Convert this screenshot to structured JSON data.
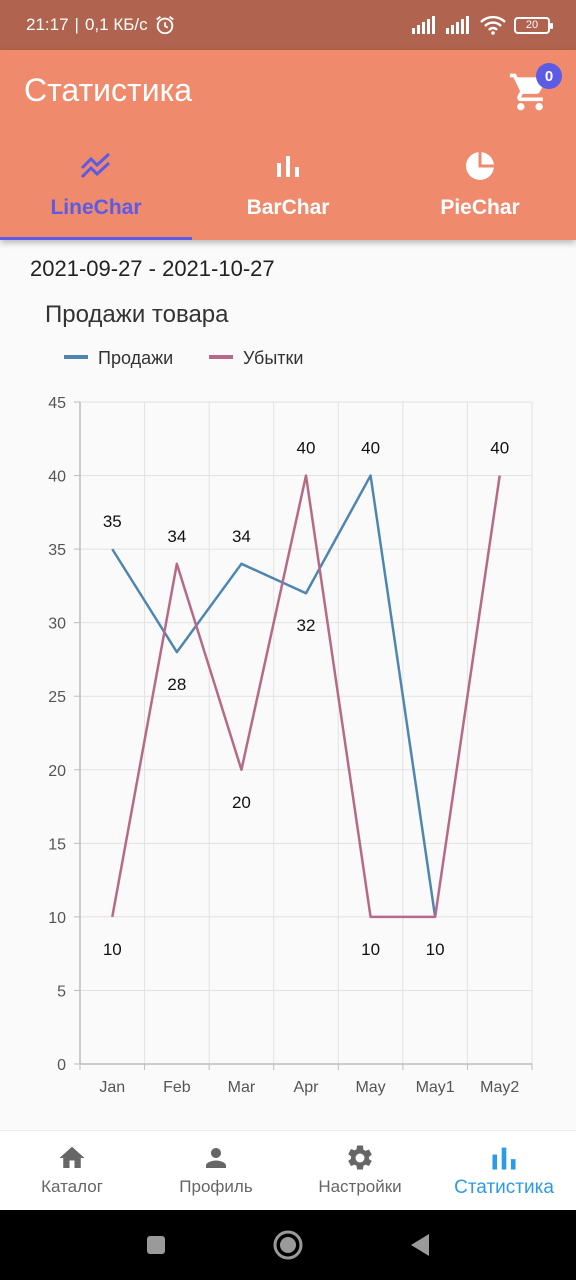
{
  "status_bar": {
    "time": "21:17",
    "speed": "0,1 КБ/с",
    "battery": "20",
    "icons": [
      "alarm-icon",
      "signal-icon",
      "signal-icon",
      "wifi-icon",
      "battery-icon"
    ]
  },
  "app_bar": {
    "title": "Статистика",
    "cart_count": "0"
  },
  "tabs": [
    {
      "label": "LineChar",
      "icon": "line-chart-icon",
      "active": true
    },
    {
      "label": "BarChar",
      "icon": "bar-chart-icon",
      "active": false
    },
    {
      "label": "PieChar",
      "icon": "pie-chart-icon",
      "active": false
    }
  ],
  "date_range": "2021-09-27 - 2021-10-27",
  "chart_data": {
    "type": "line",
    "title": "Продажи товара",
    "categories": [
      "Jan",
      "Feb",
      "Mar",
      "Apr",
      "May",
      "May1",
      "May2"
    ],
    "ylim": [
      0,
      45
    ],
    "yticks": [
      0,
      5,
      10,
      15,
      20,
      25,
      30,
      35,
      40,
      45
    ],
    "grid": true,
    "legend_position": "top-left",
    "series": [
      {
        "name": "Продажи",
        "color": "#4f86b0",
        "values": [
          35,
          28,
          34,
          32,
          40,
          10,
          null
        ]
      },
      {
        "name": "Убытки",
        "color": "#b66a87",
        "values": [
          10,
          34,
          20,
          40,
          10,
          10,
          40
        ]
      }
    ],
    "data_labels": [
      {
        "cat": 0,
        "value": 35,
        "text": "35",
        "pos": "above"
      },
      {
        "cat": 0,
        "value": 10,
        "text": "10",
        "pos": "below"
      },
      {
        "cat": 1,
        "value": 34,
        "text": "34",
        "pos": "above"
      },
      {
        "cat": 1,
        "value": 28,
        "text": "28",
        "pos": "below"
      },
      {
        "cat": 2,
        "value": 34,
        "text": "34",
        "pos": "above"
      },
      {
        "cat": 2,
        "value": 20,
        "text": "20",
        "pos": "below"
      },
      {
        "cat": 3,
        "value": 40,
        "text": "40",
        "pos": "above"
      },
      {
        "cat": 3,
        "value": 32,
        "text": "32",
        "pos": "below"
      },
      {
        "cat": 4,
        "value": 40,
        "text": "40",
        "pos": "above"
      },
      {
        "cat": 4,
        "value": 10,
        "text": "10",
        "pos": "below"
      },
      {
        "cat": 5,
        "value": 10,
        "text": "10",
        "pos": "below"
      },
      {
        "cat": 6,
        "value": 40,
        "text": "40",
        "pos": "above"
      }
    ]
  },
  "bottom_nav": [
    {
      "label": "Каталог",
      "icon": "home-icon",
      "active": false
    },
    {
      "label": "Профиль",
      "icon": "person-icon",
      "active": false
    },
    {
      "label": "Настройки",
      "icon": "gear-icon",
      "active": false
    },
    {
      "label": "Статистика",
      "icon": "bar-chart-icon",
      "active": true
    }
  ],
  "system_nav": [
    "square-icon",
    "circle-icon",
    "back-icon"
  ]
}
